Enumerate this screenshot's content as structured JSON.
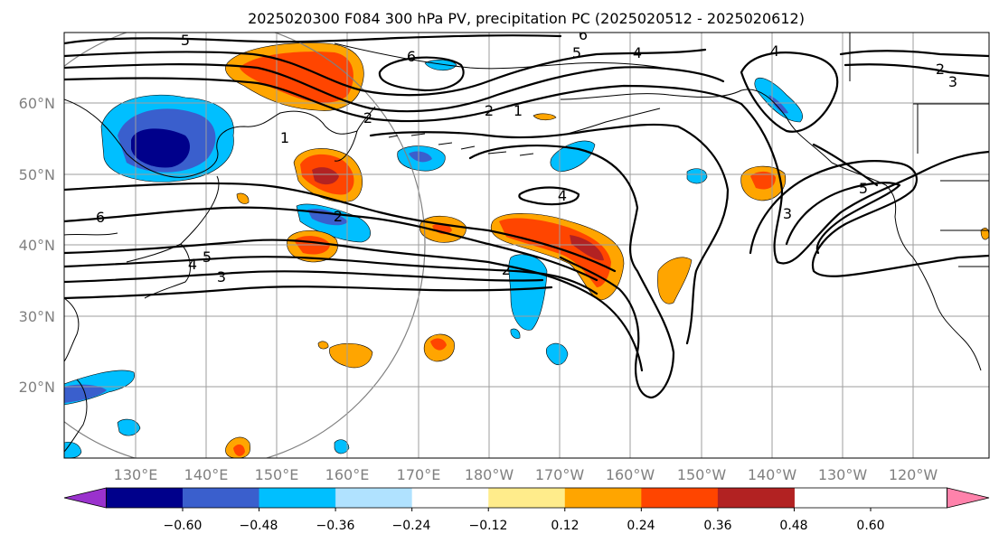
{
  "title": "2025020300 F084 300 hPa PV, precipitation PC (2025020512 - 2025020612)",
  "lat_labels": [
    "60°N",
    "50°N",
    "40°N",
    "30°N",
    "20°N"
  ],
  "lon_labels": [
    "130°E",
    "140°E",
    "150°E",
    "160°E",
    "170°E",
    "180°W",
    "170°W",
    "160°W",
    "150°W",
    "140°W",
    "130°W",
    "120°W"
  ],
  "colorbar": {
    "ticks": [
      "−0.60",
      "−0.48",
      "−0.36",
      "−0.24",
      "−0.12",
      "0.12",
      "0.24",
      "0.36",
      "0.48",
      "0.60"
    ],
    "colors": [
      "#9a32cd",
      "#00008b",
      "#3a5fcd",
      "#00bfff",
      "#b0e2ff",
      "#ffffff",
      "#ffec8b",
      "#ffa500",
      "#ff4500",
      "#b22222",
      "#ff82ab"
    ]
  },
  "contour_labels": [
    "5",
    "6",
    "6",
    "5",
    "4",
    "4",
    "2",
    "3",
    "1",
    "2",
    "1",
    "6",
    "4",
    "5",
    "4",
    "3",
    "2",
    "3",
    "5",
    "2",
    "2"
  ],
  "legend_icons": [
    "colorbar-extend-low-icon",
    "colorbar-extend-high-icon"
  ]
}
